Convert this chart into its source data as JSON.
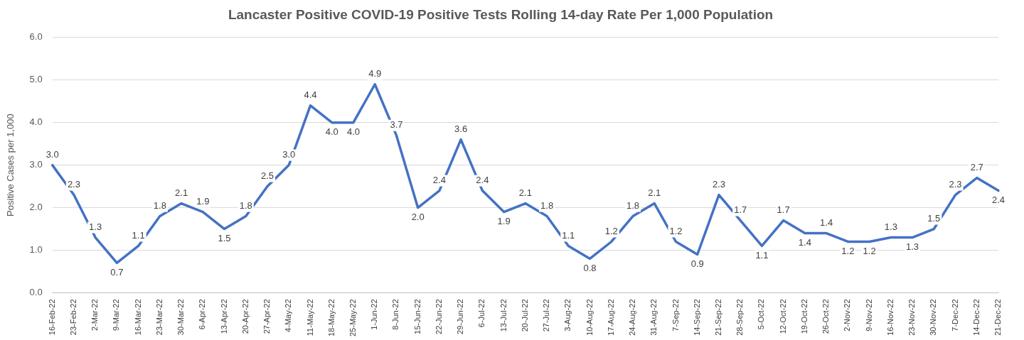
{
  "chart_data": {
    "type": "line",
    "title": "Lancaster Positive COVID-19 Positive Tests Rolling 14-day Rate Per 1,000 Population",
    "ylabel": "Positive Cases per 1,000",
    "categories": [
      "16-Feb-22",
      "23-Feb-22",
      "2-Mar-22",
      "9-Mar-22",
      "16-Mar-22",
      "23-Mar-22",
      "30-Mar-22",
      "6-Apr-22",
      "13-Apr-22",
      "20-Apr-22",
      "27-Apr-22",
      "4-May-22",
      "11-May-22",
      "18-May-22",
      "25-May-22",
      "1-Jun-22",
      "8-Jun-22",
      "15-Jun-22",
      "22-Jun-22",
      "29-Jun-22",
      "6-Jul-22",
      "13-Jul-22",
      "20-Jul-22",
      "27-Jul-22",
      "3-Aug-22",
      "10-Aug-22",
      "17-Aug-22",
      "24-Aug-22",
      "31-Aug-22",
      "7-Sep-22",
      "14-Sep-22",
      "21-Sep-22",
      "28-Sep-22",
      "5-Oct-22",
      "12-Oct-22",
      "19-Oct-22",
      "26-Oct-22",
      "2-Nov-22",
      "9-Nov-22",
      "16-Nov-22",
      "23-Nov-22",
      "30-Nov-22",
      "7-Dec-22",
      "14-Dec-22",
      "21-Dec-22"
    ],
    "values": [
      3.0,
      2.3,
      1.3,
      0.7,
      1.1,
      1.8,
      2.1,
      1.9,
      1.5,
      1.8,
      2.5,
      3.0,
      4.4,
      4.0,
      4.0,
      4.9,
      3.7,
      2.0,
      2.4,
      3.6,
      2.4,
      1.9,
      2.1,
      1.8,
      1.1,
      0.8,
      1.2,
      1.8,
      2.1,
      1.2,
      0.9,
      2.3,
      1.7,
      1.1,
      1.7,
      1.4,
      1.4,
      1.2,
      1.2,
      1.3,
      1.3,
      1.5,
      2.3,
      2.7,
      2.4
    ],
    "color": "#4472c4",
    "ylim": [
      0,
      6
    ],
    "yticks": [
      {
        "value": 0,
        "label": "0.0"
      },
      {
        "value": 1,
        "label": "1.0"
      },
      {
        "value": 2,
        "label": "2.0"
      },
      {
        "value": 3,
        "label": "3.0"
      },
      {
        "value": 4,
        "label": "4.0"
      },
      {
        "value": 5,
        "label": "5.0"
      },
      {
        "value": 6,
        "label": "6.0"
      }
    ],
    "value_labels": [
      "3.0",
      "2.3",
      "1.3",
      "0.7",
      "1.1",
      "1.8",
      "2.1",
      "1.9",
      "1.5",
      "1.8",
      "2.5",
      "3.0",
      "4.4",
      "4.0",
      "4.0",
      "4.9",
      "3.7",
      "2.0",
      "2.4",
      "3.6",
      "2.4",
      "1.9",
      "2.1",
      "1.8",
      "1.1",
      "0.8",
      "1.2",
      "1.8",
      "2.1",
      "1.2",
      "0.9",
      "2.3",
      "1.7",
      "1.1",
      "1.7",
      "1.4",
      "1.4",
      "1.2",
      "1.2",
      "1.3",
      "1.3",
      "1.5",
      "2.3",
      "2.7",
      "2.4"
    ],
    "grid": "y",
    "legend": false,
    "marker": "none",
    "line_style": "solid"
  }
}
